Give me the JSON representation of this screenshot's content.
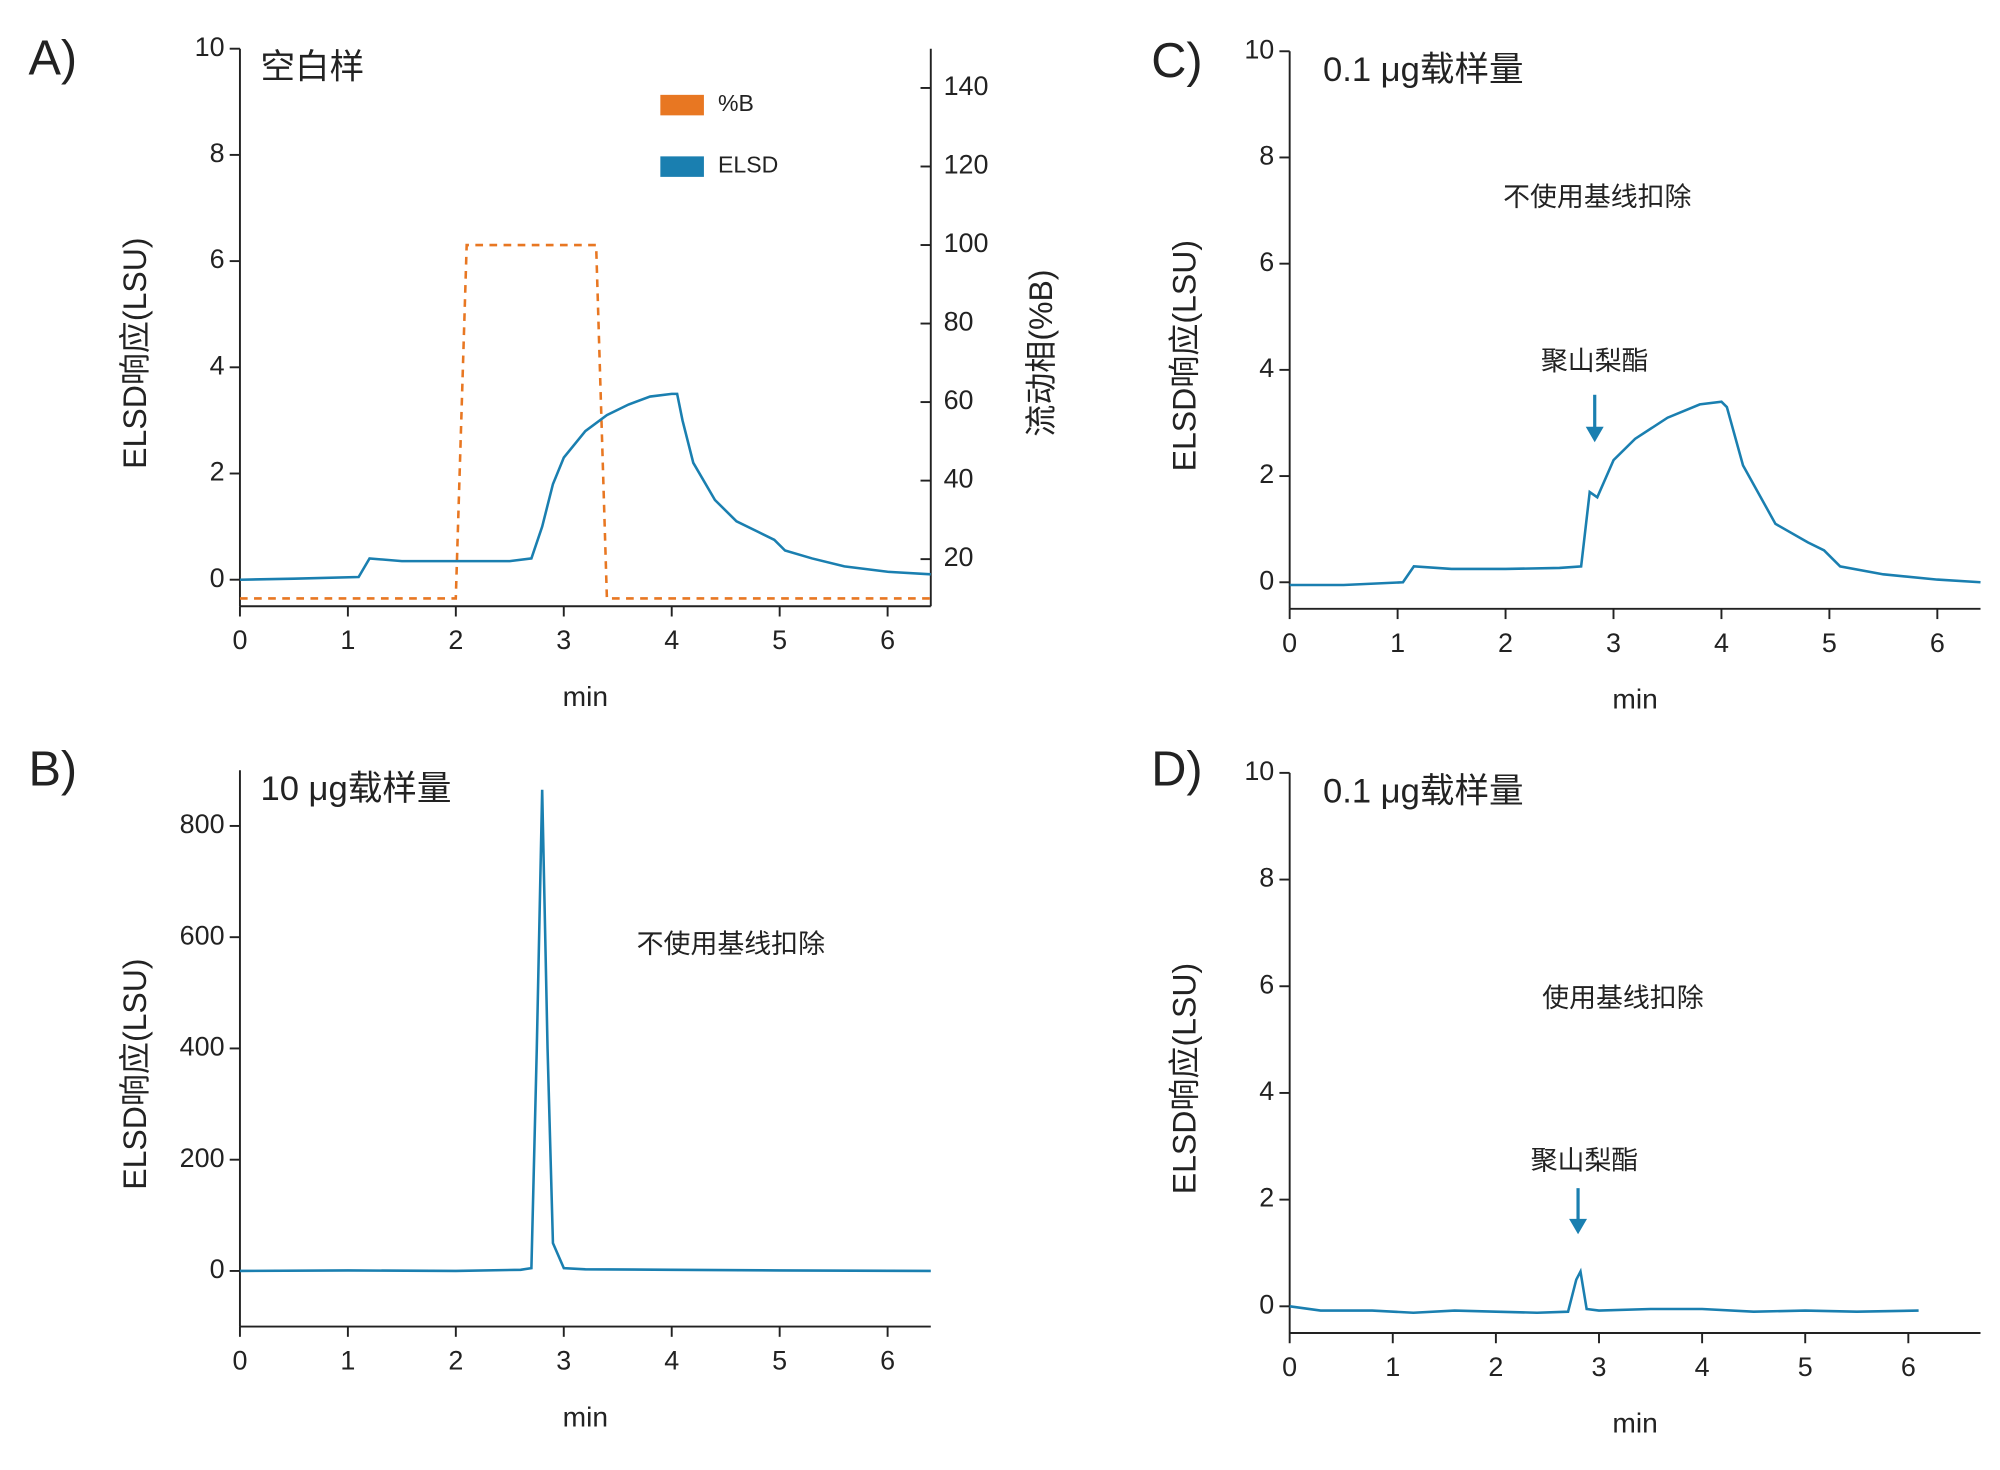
{
  "chart_data": [
    {
      "type": "line",
      "panel": "A)",
      "title": "空白样",
      "x_label": "min",
      "y_label": "ELSD响应(LSU)",
      "y2_label": "流动相(%B)",
      "xlim": [
        0,
        6.4
      ],
      "xticks": [
        0,
        1,
        2,
        3,
        4,
        5,
        6
      ],
      "ylim": [
        -0.5,
        10
      ],
      "yticks": [
        0,
        2,
        4,
        6,
        8,
        10
      ],
      "y2lim": [
        8,
        150
      ],
      "y2ticks": [
        20,
        40,
        60,
        80,
        100,
        120,
        140
      ],
      "series": [
        {
          "name": "%B",
          "color": "#e87722",
          "axis": "y2",
          "dashed": true,
          "x": [
            0,
            2.0,
            2.1,
            3.3,
            3.4,
            6.4
          ],
          "values": [
            10,
            10,
            100,
            100,
            10,
            10
          ]
        },
        {
          "name": "ELSD",
          "color": "#1a7fb0",
          "x": [
            0,
            0.5,
            1.1,
            1.2,
            1.5,
            2.0,
            2.5,
            2.7,
            2.8,
            2.9,
            3.0,
            3.2,
            3.4,
            3.6,
            3.8,
            4.0,
            4.05,
            4.1,
            4.2,
            4.4,
            4.6,
            4.8,
            4.95,
            5.05,
            5.3,
            5.6,
            6.0,
            6.4
          ],
          "values": [
            0,
            0.02,
            0.05,
            0.4,
            0.35,
            0.35,
            0.35,
            0.4,
            1.0,
            1.8,
            2.3,
            2.8,
            3.1,
            3.3,
            3.45,
            3.5,
            3.5,
            3.0,
            2.2,
            1.5,
            1.1,
            0.9,
            0.75,
            0.55,
            0.4,
            0.25,
            0.15,
            0.1
          ]
        }
      ]
    },
    {
      "type": "line",
      "panel": "B)",
      "title": "10 μg载样量",
      "x_label": "min",
      "y_label": "ELSD响应(LSU)",
      "annotations": [
        "不使用基线扣除"
      ],
      "xlim": [
        0,
        6.4
      ],
      "xticks": [
        0,
        1,
        2,
        3,
        4,
        5,
        6
      ],
      "ylim": [
        -100,
        900
      ],
      "yticks": [
        0,
        200,
        400,
        600,
        800
      ],
      "series": [
        {
          "name": "ELSD",
          "color": "#1a7fb0",
          "x": [
            0,
            1.0,
            2.0,
            2.6,
            2.7,
            2.75,
            2.8,
            2.85,
            2.9,
            3.0,
            3.2,
            4.0,
            5.0,
            6.4
          ],
          "values": [
            0,
            1,
            0,
            2,
            5,
            400,
            865,
            400,
            50,
            5,
            3,
            2,
            1,
            0
          ]
        }
      ]
    },
    {
      "type": "line",
      "panel": "C)",
      "title": "0.1 μg载样量",
      "x_label": "min",
      "y_label": "ELSD响应(LSU)",
      "annotations": [
        "不使用基线扣除",
        "聚山梨酯"
      ],
      "xlim": [
        0,
        6.4
      ],
      "xticks": [
        0,
        1,
        2,
        3,
        4,
        5,
        6
      ],
      "ylim": [
        -0.5,
        10
      ],
      "yticks": [
        0,
        2,
        4,
        6,
        8,
        10
      ],
      "series": [
        {
          "name": "ELSD",
          "color": "#1a7fb0",
          "x": [
            0,
            0.5,
            1.05,
            1.15,
            1.5,
            2.0,
            2.5,
            2.7,
            2.78,
            2.85,
            3.0,
            3.2,
            3.5,
            3.8,
            4.0,
            4.05,
            4.2,
            4.5,
            4.8,
            4.95,
            5.1,
            5.5,
            6.0,
            6.4
          ],
          "values": [
            -0.05,
            -0.05,
            0,
            0.3,
            0.25,
            0.25,
            0.27,
            0.3,
            1.7,
            1.6,
            2.3,
            2.7,
            3.1,
            3.35,
            3.4,
            3.3,
            2.2,
            1.1,
            0.75,
            0.6,
            0.3,
            0.15,
            0.05,
            0
          ]
        }
      ]
    },
    {
      "type": "line",
      "panel": "D)",
      "title": "0.1 μg载样量",
      "x_label": "min",
      "y_label": "ELSD响应(LSU)",
      "annotations": [
        "使用基线扣除",
        "聚山梨酯"
      ],
      "xlim": [
        0,
        6.7
      ],
      "xticks": [
        0,
        1,
        2,
        3,
        4,
        5,
        6
      ],
      "ylim": [
        -0.5,
        10
      ],
      "yticks": [
        0,
        2,
        4,
        6,
        8,
        10
      ],
      "series": [
        {
          "name": "ELSD",
          "color": "#1a7fb0",
          "x": [
            0,
            0.3,
            0.8,
            1.2,
            1.6,
            2.0,
            2.4,
            2.7,
            2.78,
            2.82,
            2.88,
            3.0,
            3.5,
            4.0,
            4.5,
            5.0,
            5.5,
            6.1
          ],
          "values": [
            0,
            -0.08,
            -0.08,
            -0.12,
            -0.08,
            -0.1,
            -0.12,
            -0.1,
            0.5,
            0.65,
            -0.05,
            -0.08,
            -0.05,
            -0.05,
            -0.1,
            -0.08,
            -0.1,
            -0.08
          ]
        }
      ]
    }
  ]
}
